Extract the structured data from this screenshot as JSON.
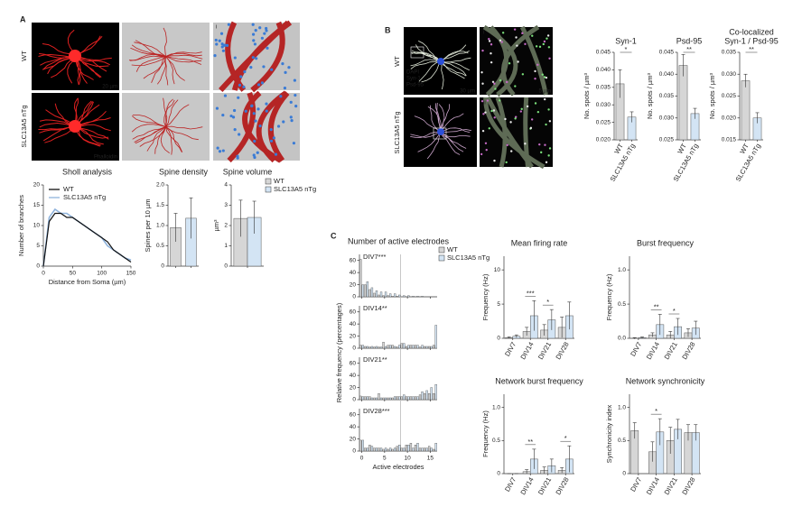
{
  "panels": {
    "a": "A",
    "b": "B",
    "c": "C"
  },
  "images": {
    "a": {
      "rows": [
        "WT",
        "SLC13A5 nTg"
      ],
      "scale": "20 µm",
      "stain": "Phalloidin",
      "inset": "i"
    },
    "b": {
      "rows": [
        "WT",
        "SLC13A5 nTg"
      ],
      "channels": [
        "DAPI",
        "Syn-1",
        "Psd-95"
      ],
      "scales": [
        "30 µm",
        "5 µm"
      ],
      "insets": [
        "i",
        "ii"
      ]
    }
  },
  "chart_data": [
    {
      "type": "line",
      "title": "Sholl analysis",
      "x_label": "Distance from Soma (µm)",
      "y_label": "Number of branches",
      "x": [
        0,
        10,
        20,
        30,
        40,
        50,
        60,
        70,
        80,
        90,
        100,
        110,
        120,
        130,
        140,
        150
      ],
      "series": [
        {
          "name": "WT",
          "color": "#111111",
          "values": [
            0,
            11,
            13,
            13,
            12,
            12,
            11,
            10,
            9,
            8,
            7,
            6,
            4,
            3,
            2,
            1
          ]
        },
        {
          "name": "SLC13A5 nTg",
          "color": "#8fb3dc",
          "values": [
            0,
            12,
            14,
            13,
            13,
            12,
            11,
            10,
            9,
            8,
            7,
            5,
            4,
            3,
            2,
            1.5
          ]
        }
      ],
      "xlim": [
        0,
        150
      ],
      "xticks": [
        0,
        50,
        100,
        150
      ],
      "ylim": [
        0,
        20
      ],
      "yticks": [
        0,
        5,
        10,
        15,
        20
      ],
      "legend": "upper left"
    },
    {
      "type": "bar",
      "title": "Spine density",
      "y_label": "Spines per 10 µm",
      "categories": [
        null,
        null
      ],
      "values": [
        0.95,
        1.18
      ],
      "errors": [
        0.35,
        0.5
      ],
      "colors": [
        "#d6d6d6",
        "#d3e4f4"
      ],
      "ylim": [
        0,
        2
      ],
      "yticks": [
        0,
        0.5,
        {
          "value": 1,
          "label": "1.0"
        },
        1.5,
        {
          "value": 2,
          "label": "2.0"
        }
      ]
    },
    {
      "type": "bar",
      "title": "Spine volume",
      "y_label": "µm³",
      "categories": [
        null
      ],
      "series": [
        {
          "name": "WT",
          "color": "#d6d6d6",
          "values": [
            2.35
          ],
          "errors": [
            0.9
          ]
        },
        {
          "name": "SLC13A5 nTg",
          "color": "#d3e4f4",
          "values": [
            2.4
          ],
          "errors": [
            0.8
          ]
        }
      ],
      "ylim": [
        0,
        4
      ],
      "yticks": [
        0,
        1,
        2,
        3,
        4
      ],
      "legend": "right"
    },
    {
      "type": "bar",
      "title": [
        "Syn-1"
      ],
      "y_label": "No. spots / µm³",
      "categories": [
        "WT",
        "SLC13A5 nTg"
      ],
      "values": [
        0.036,
        0.0265
      ],
      "errors": [
        0.004,
        0.0015
      ],
      "colors": [
        "#d6d6d6",
        "#d3e4f4"
      ],
      "ylim": [
        0.02,
        0.045
      ],
      "yticks": [
        {
          "value": 0.02,
          "label": "0.020"
        },
        {
          "value": 0.025,
          "label": "0.025"
        },
        {
          "value": 0.03,
          "label": "0.030"
        },
        {
          "value": 0.035,
          "label": "0.035"
        },
        {
          "value": 0.04,
          "label": "0.040"
        },
        {
          "value": 0.045,
          "label": "0.045"
        }
      ],
      "annotations": [
        {
          "text": "*"
        }
      ]
    },
    {
      "type": "bar",
      "title": [
        "Psd-95"
      ],
      "y_label": "No. spots / µm³",
      "categories": [
        "WT",
        "SLC13A5 nTg"
      ],
      "values": [
        0.042,
        0.031
      ],
      "errors": [
        0.0025,
        0.0012
      ],
      "colors": [
        "#d6d6d6",
        "#d3e4f4"
      ],
      "ylim": [
        0.025,
        0.045
      ],
      "yticks": [
        {
          "value": 0.025,
          "label": "0.025"
        },
        {
          "value": 0.03,
          "label": "0.030"
        },
        {
          "value": 0.035,
          "label": "0.035"
        },
        {
          "value": 0.04,
          "label": "0.040"
        },
        {
          "value": 0.045,
          "label": "0.045"
        }
      ],
      "annotations": [
        {
          "text": "**"
        }
      ]
    },
    {
      "type": "bar",
      "title": [
        "Co-localized",
        "Syn-1 / Psd-95"
      ],
      "y_label": "No. spots / µm³",
      "categories": [
        "WT",
        "SLC13A5 nTg"
      ],
      "values": [
        0.0285,
        0.02
      ],
      "errors": [
        0.0015,
        0.0012
      ],
      "colors": [
        "#d6d6d6",
        "#d3e4f4"
      ],
      "ylim": [
        0.015,
        0.035
      ],
      "yticks": [
        {
          "value": 0.015,
          "label": "0.015"
        },
        {
          "value": 0.02,
          "label": "0.020"
        },
        {
          "value": 0.025,
          "label": "0.025"
        },
        {
          "value": 0.03,
          "label": "0.030"
        },
        {
          "value": 0.035,
          "label": "0.035"
        }
      ],
      "annotations": [
        {
          "text": "**"
        }
      ]
    },
    {
      "type": "bar",
      "title": "Number of active electrodes",
      "x_label": "Active electrodes",
      "y_label": "Relative frequency (percentages)",
      "x": [
        0,
        1,
        2,
        3,
        4,
        5,
        6,
        7,
        8,
        9,
        10,
        11,
        12,
        13,
        14,
        15,
        16
      ],
      "xlim": [
        -0.5,
        16.5
      ],
      "xticks": [
        0,
        5,
        10,
        15
      ],
      "ylim": [
        0,
        70
      ],
      "yticks": [
        0,
        20,
        40,
        60
      ],
      "reference_line": 8.5,
      "legend": "right",
      "series_names": [
        "WT",
        "SLC13A5 nTg"
      ],
      "subplots": [
        {
          "label": "DIV7***",
          "series": [
            {
              "color": "#d6d6d6",
              "values": [
                62,
                20,
                12,
                6,
                3,
                2,
                2,
                1,
                1,
                0,
                0,
                0,
                0,
                0,
                0,
                0,
                0
              ]
            },
            {
              "color": "#d3e4f4",
              "values": [
                20,
                25,
                15,
                10,
                8,
                8,
                5,
                5,
                3,
                2,
                2,
                1,
                1,
                1,
                0,
                0,
                0
              ]
            }
          ]
        },
        {
          "label": "DIV14**",
          "series": [
            {
              "color": "#d6d6d6",
              "values": [
                5,
                3,
                2,
                2,
                2,
                10,
                5,
                5,
                2,
                8,
                3,
                5,
                5,
                2,
                3,
                3,
                5
              ]
            },
            {
              "color": "#d3e4f4",
              "values": [
                5,
                3,
                3,
                3,
                2,
                3,
                5,
                3,
                5,
                8,
                5,
                5,
                5,
                5,
                3,
                3,
                38
              ]
            }
          ]
        },
        {
          "label": "DIV21**",
          "series": [
            {
              "color": "#d6d6d6",
              "values": [
                6,
                5,
                5,
                3,
                10,
                3,
                3,
                3,
                5,
                5,
                5,
                5,
                5,
                8,
                10,
                10,
                10
              ]
            },
            {
              "color": "#d3e4f4",
              "values": [
                5,
                5,
                3,
                3,
                3,
                3,
                3,
                5,
                5,
                8,
                5,
                5,
                5,
                13,
                15,
                20,
                25
              ]
            }
          ]
        },
        {
          "label": "DIV28***",
          "series": [
            {
              "color": "#d6d6d6",
              "values": [
                18,
                5,
                10,
                5,
                5,
                3,
                3,
                3,
                8,
                5,
                10,
                13,
                10,
                5,
                5,
                8,
                3
              ]
            },
            {
              "color": "#d3e4f4",
              "values": [
                18,
                5,
                8,
                5,
                5,
                5,
                5,
                5,
                10,
                5,
                10,
                5,
                13,
                5,
                5,
                5,
                13
              ]
            }
          ]
        }
      ]
    },
    {
      "type": "bar",
      "title": "Mean firing rate",
      "y_label": "Frequency (Hz)",
      "categories": [
        "DIV7",
        "DIV14",
        "DIV21",
        "DIV28"
      ],
      "series": [
        {
          "color": "#d6d6d6",
          "values": [
            0.1,
            1.0,
            1.2,
            1.6
          ],
          "errors": [
            0.1,
            0.6,
            0.8,
            1.5
          ]
        },
        {
          "color": "#d3e4f4",
          "values": [
            0.3,
            3.3,
            2.7,
            3.3
          ],
          "errors": [
            0.2,
            2.2,
            1.5,
            2.0
          ]
        }
      ],
      "ylim": [
        0,
        12
      ],
      "yticks": [
        0,
        5,
        10
      ],
      "annotations": [
        {
          "text": "***",
          "category": "DIV14"
        },
        {
          "text": "*",
          "category": "DIV21"
        }
      ]
    },
    {
      "type": "bar",
      "title": "Burst frequency",
      "y_label": "Frequency (Hz)",
      "categories": [
        "DIV7",
        "DIV14",
        "DIV21",
        "DIV28"
      ],
      "series": [
        {
          "color": "#d6d6d6",
          "values": [
            0.0,
            0.05,
            0.05,
            0.08
          ],
          "errors": [
            0.01,
            0.03,
            0.05,
            0.06
          ]
        },
        {
          "color": "#d3e4f4",
          "values": [
            0.01,
            0.2,
            0.17,
            0.15
          ],
          "errors": [
            0.01,
            0.15,
            0.12,
            0.1
          ]
        }
      ],
      "ylim": [
        0,
        1.2
      ],
      "yticks": [
        {
          "value": 0,
          "label": "0.0"
        },
        0.5,
        {
          "value": 1,
          "label": "1.0"
        }
      ],
      "annotations": [
        {
          "text": "**",
          "category": "DIV14"
        },
        {
          "text": "*",
          "category": "DIV21"
        }
      ]
    },
    {
      "type": "bar",
      "title": "Network burst frequency",
      "y_label": "Frequency (Hz)",
      "categories": [
        "DIV7",
        "DIV14",
        "DIV21",
        "DIV28"
      ],
      "series": [
        {
          "color": "#d6d6d6",
          "values": [
            0,
            0.03,
            0.05,
            0.05
          ],
          "errors": [
            0,
            0.03,
            0.05,
            0.04
          ]
        },
        {
          "color": "#d3e4f4",
          "values": [
            0,
            0.22,
            0.12,
            0.22
          ],
          "errors": [
            0,
            0.15,
            0.1,
            0.2
          ]
        }
      ],
      "ylim": [
        0,
        1.2
      ],
      "yticks": [
        0,
        0.5,
        {
          "value": 1,
          "label": "1.0"
        }
      ],
      "annotations": [
        {
          "text": "**",
          "category": "DIV14"
        },
        {
          "text": "*",
          "category": "DIV28"
        }
      ]
    },
    {
      "type": "bar",
      "title": "Network synchronicity",
      "y_label": "Synchronicity index",
      "categories": [
        "DIV7",
        "DIV14",
        "DIV21",
        "DIV28"
      ],
      "series": [
        {
          "color": "#d6d6d6",
          "values": [
            0.65,
            0.33,
            0.5,
            0.62
          ],
          "errors": [
            0.12,
            0.15,
            0.2,
            0.12
          ]
        },
        {
          "color": "#d3e4f4",
          "values": [
            null,
            0.63,
            0.67,
            0.62
          ],
          "errors": [
            null,
            0.2,
            0.15,
            0.12
          ]
        }
      ],
      "ylim": [
        0,
        1.2
      ],
      "yticks": [
        0,
        0.5,
        {
          "value": 1,
          "label": "1.0"
        }
      ],
      "annotations": [
        {
          "text": "*",
          "category": "DIV14"
        }
      ]
    }
  ]
}
